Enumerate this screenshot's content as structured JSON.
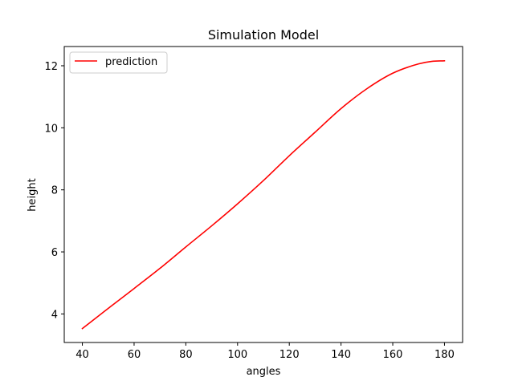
{
  "chart_data": {
    "type": "line",
    "title": "Simulation Model",
    "xlabel": "angles",
    "ylabel": "height",
    "xlim": [
      33,
      187
    ],
    "ylim": [
      3.08,
      12.62
    ],
    "xticks": [
      40,
      60,
      80,
      100,
      120,
      140,
      160,
      180
    ],
    "yticks": [
      4,
      6,
      8,
      10,
      12
    ],
    "grid": false,
    "legend_position": "upper-left",
    "series": [
      {
        "name": "prediction",
        "color": "#ff0000",
        "x": [
          40,
          50,
          60,
          70,
          80,
          90,
          100,
          110,
          120,
          130,
          140,
          150,
          160,
          170,
          175,
          180
        ],
        "y": [
          3.53,
          4.18,
          4.82,
          5.47,
          6.16,
          6.84,
          7.55,
          8.3,
          9.1,
          9.86,
          10.62,
          11.26,
          11.76,
          12.06,
          12.14,
          12.16
        ]
      }
    ]
  }
}
